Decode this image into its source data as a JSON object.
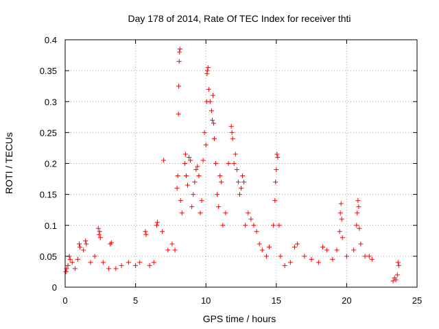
{
  "chart_data": {
    "type": "scatter",
    "title": "Day 178 of 2014, Rate Of TEC Index for receiver thti",
    "xlabel": "GPS time / hours",
    "ylabel": "ROTI / TECUs",
    "xlim": [
      0,
      25
    ],
    "ylim": [
      0,
      0.4
    ],
    "grid": true,
    "marker": "+",
    "color": "#ff0000",
    "x_ticks": [
      0,
      5,
      10,
      15,
      20,
      25
    ],
    "x_tick_labels": [
      "0",
      "5",
      "10",
      "15",
      "20",
      "25"
    ],
    "y_ticks": [
      0,
      0.05,
      0.1,
      0.15,
      0.2,
      0.25,
      0.3,
      0.35,
      0.4
    ],
    "y_tick_labels": [
      "0",
      "0.05",
      "0.1",
      "0.15",
      "0.2",
      "0.25",
      "0.3",
      "0.35",
      "0.4"
    ],
    "series": [
      {
        "name": "ROTI",
        "points": [
          [
            0.05,
            0.025
          ],
          [
            0.1,
            0.03
          ],
          [
            0.2,
            0.035
          ],
          [
            0.3,
            0.05
          ],
          [
            0.35,
            0.045
          ],
          [
            0.5,
            0.04
          ],
          [
            0.7,
            0.03
          ],
          [
            0.9,
            0.045
          ],
          [
            1.0,
            0.07
          ],
          [
            1.05,
            0.065
          ],
          [
            1.3,
            0.06
          ],
          [
            1.45,
            0.075
          ],
          [
            1.5,
            0.07
          ],
          [
            1.8,
            0.04
          ],
          [
            2.1,
            0.05
          ],
          [
            2.35,
            0.095
          ],
          [
            2.4,
            0.085
          ],
          [
            2.45,
            0.09
          ],
          [
            2.5,
            0.08
          ],
          [
            2.7,
            0.04
          ],
          [
            3.1,
            0.03
          ],
          [
            3.2,
            0.07
          ],
          [
            3.3,
            0.072
          ],
          [
            3.6,
            0.03
          ],
          [
            4.0,
            0.035
          ],
          [
            4.5,
            0.04
          ],
          [
            5.0,
            0.035
          ],
          [
            5.3,
            0.04
          ],
          [
            5.7,
            0.09
          ],
          [
            5.75,
            0.085
          ],
          [
            6.0,
            0.035
          ],
          [
            6.3,
            0.04
          ],
          [
            6.5,
            0.1
          ],
          [
            6.55,
            0.105
          ],
          [
            6.9,
            0.09
          ],
          [
            7.0,
            0.205
          ],
          [
            7.3,
            0.06
          ],
          [
            7.6,
            0.07
          ],
          [
            7.8,
            0.06
          ],
          [
            7.95,
            0.16
          ],
          [
            8.0,
            0.18
          ],
          [
            8.05,
            0.28
          ],
          [
            8.07,
            0.325
          ],
          [
            8.1,
            0.365
          ],
          [
            8.12,
            0.38
          ],
          [
            8.15,
            0.385
          ],
          [
            8.2,
            0.14
          ],
          [
            8.3,
            0.12
          ],
          [
            8.5,
            0.2
          ],
          [
            8.55,
            0.215
          ],
          [
            8.6,
            0.18
          ],
          [
            8.7,
            0.165
          ],
          [
            8.8,
            0.21
          ],
          [
            8.9,
            0.205
          ],
          [
            9.0,
            0.13
          ],
          [
            9.1,
            0.15
          ],
          [
            9.2,
            0.17
          ],
          [
            9.3,
            0.19
          ],
          [
            9.4,
            0.195
          ],
          [
            9.5,
            0.18
          ],
          [
            9.6,
            0.12
          ],
          [
            9.7,
            0.14
          ],
          [
            9.8,
            0.205
          ],
          [
            9.9,
            0.25
          ],
          [
            10.0,
            0.23
          ],
          [
            10.05,
            0.3
          ],
          [
            10.08,
            0.345
          ],
          [
            10.1,
            0.35
          ],
          [
            10.15,
            0.355
          ],
          [
            10.2,
            0.32
          ],
          [
            10.3,
            0.3
          ],
          [
            10.4,
            0.285
          ],
          [
            10.45,
            0.27
          ],
          [
            10.5,
            0.31
          ],
          [
            10.55,
            0.265
          ],
          [
            10.6,
            0.24
          ],
          [
            10.7,
            0.2
          ],
          [
            10.8,
            0.15
          ],
          [
            10.9,
            0.13
          ],
          [
            11.0,
            0.18
          ],
          [
            11.1,
            0.17
          ],
          [
            11.2,
            0.1
          ],
          [
            11.4,
            0.12
          ],
          [
            11.6,
            0.2
          ],
          [
            11.8,
            0.26
          ],
          [
            11.85,
            0.25
          ],
          [
            11.9,
            0.24
          ],
          [
            12.0,
            0.2
          ],
          [
            12.1,
            0.215
          ],
          [
            12.2,
            0.19
          ],
          [
            12.3,
            0.17
          ],
          [
            12.4,
            0.15
          ],
          [
            12.5,
            0.16
          ],
          [
            12.6,
            0.18
          ],
          [
            12.7,
            0.17
          ],
          [
            12.8,
            0.1
          ],
          [
            13.0,
            0.12
          ],
          [
            13.2,
            0.11
          ],
          [
            13.4,
            0.1
          ],
          [
            13.6,
            0.09
          ],
          [
            13.8,
            0.07
          ],
          [
            14.0,
            0.06
          ],
          [
            14.3,
            0.05
          ],
          [
            14.5,
            0.065
          ],
          [
            14.8,
            0.1
          ],
          [
            14.9,
            0.14
          ],
          [
            14.95,
            0.17
          ],
          [
            15.0,
            0.19
          ],
          [
            15.05,
            0.215
          ],
          [
            15.1,
            0.21
          ],
          [
            15.2,
            0.1
          ],
          [
            15.3,
            0.05
          ],
          [
            15.6,
            0.035
          ],
          [
            16.0,
            0.04
          ],
          [
            16.3,
            0.065
          ],
          [
            16.5,
            0.07
          ],
          [
            17.0,
            0.05
          ],
          [
            17.5,
            0.045
          ],
          [
            18.0,
            0.04
          ],
          [
            18.3,
            0.065
          ],
          [
            18.6,
            0.06
          ],
          [
            19.0,
            0.045
          ],
          [
            19.3,
            0.06
          ],
          [
            19.5,
            0.09
          ],
          [
            19.55,
            0.12
          ],
          [
            19.6,
            0.135
          ],
          [
            19.65,
            0.11
          ],
          [
            19.7,
            0.08
          ],
          [
            20.0,
            0.05
          ],
          [
            20.5,
            0.06
          ],
          [
            20.7,
            0.1
          ],
          [
            20.75,
            0.12
          ],
          [
            20.8,
            0.14
          ],
          [
            20.85,
            0.13
          ],
          [
            20.9,
            0.095
          ],
          [
            21.0,
            0.07
          ],
          [
            21.3,
            0.05
          ],
          [
            21.6,
            0.05
          ],
          [
            21.8,
            0.045
          ],
          [
            23.3,
            0.01
          ],
          [
            23.4,
            0.015
          ],
          [
            23.5,
            0.012
          ],
          [
            23.6,
            0.02
          ],
          [
            23.65,
            0.04
          ],
          [
            23.7,
            0.035
          ]
        ]
      }
    ]
  }
}
